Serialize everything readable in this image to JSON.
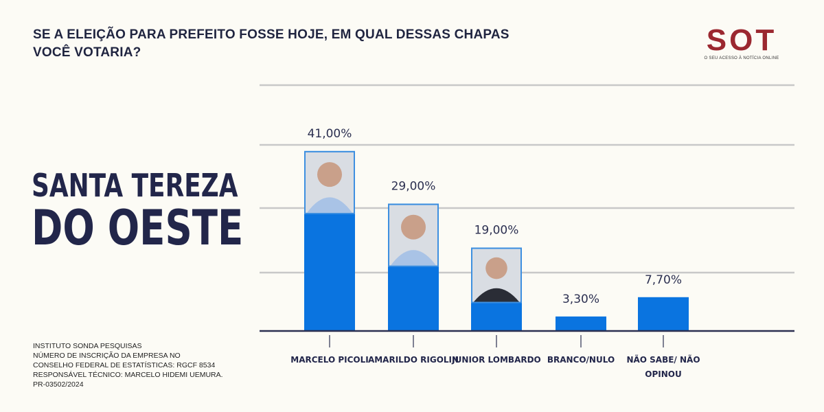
{
  "title": "SE A ELEIÇÃO PARA PREFEITO FOSSE HOJE, EM QUAL DESSAS CHAPAS VOCÊ VOTARIA?",
  "city": {
    "line1": "SANTA TEREZA",
    "line2": "DO OESTE"
  },
  "logo": {
    "brand": "SOT",
    "tagline": "O SEU ACESSO À NOTÍCIA ONLINE"
  },
  "source_lines": [
    "INSTITUTO SONDA PESQUISAS",
    "NÚMERO DE INSCRIÇÃO DA EMPRESA NO",
    "CONSELHO FEDERAL DE ESTATÍSTICAS: RGCF 8534",
    "RESPONSÁVEL TÉCNICO: MARCELO HIDEMI UEMURA.",
    "PR-03502/2024"
  ],
  "colors": {
    "bar": "#0a74e0",
    "photo_border": "#3d8fe0",
    "grid": "#c8c8c8",
    "axis": "#2b2f50",
    "logo": "#9b2830"
  },
  "chart_data": {
    "type": "bar",
    "title": "SE A ELEIÇÃO PARA PREFEITO FOSSE HOJE, EM QUAL DESSAS CHAPAS VOCÊ VOTARIA?",
    "categories": [
      "MARCELO PICOLI",
      "AMARILDO RIGOLIN",
      "JUNIOR LOMBARDO",
      "BRANCO/NULO",
      "NÃO SABE/ NÃO OPINOU"
    ],
    "values": [
      41.0,
      29.0,
      19.0,
      3.3,
      7.7
    ],
    "value_labels": [
      "41,00%",
      "29,00%",
      "19,00%",
      "3,30%",
      "7,70%"
    ],
    "candidate_photos": [
      true,
      true,
      true,
      false,
      false
    ],
    "unit": "%",
    "ylim": [
      0,
      56
    ],
    "grid": true,
    "y_tick_labels_shown": false
  }
}
